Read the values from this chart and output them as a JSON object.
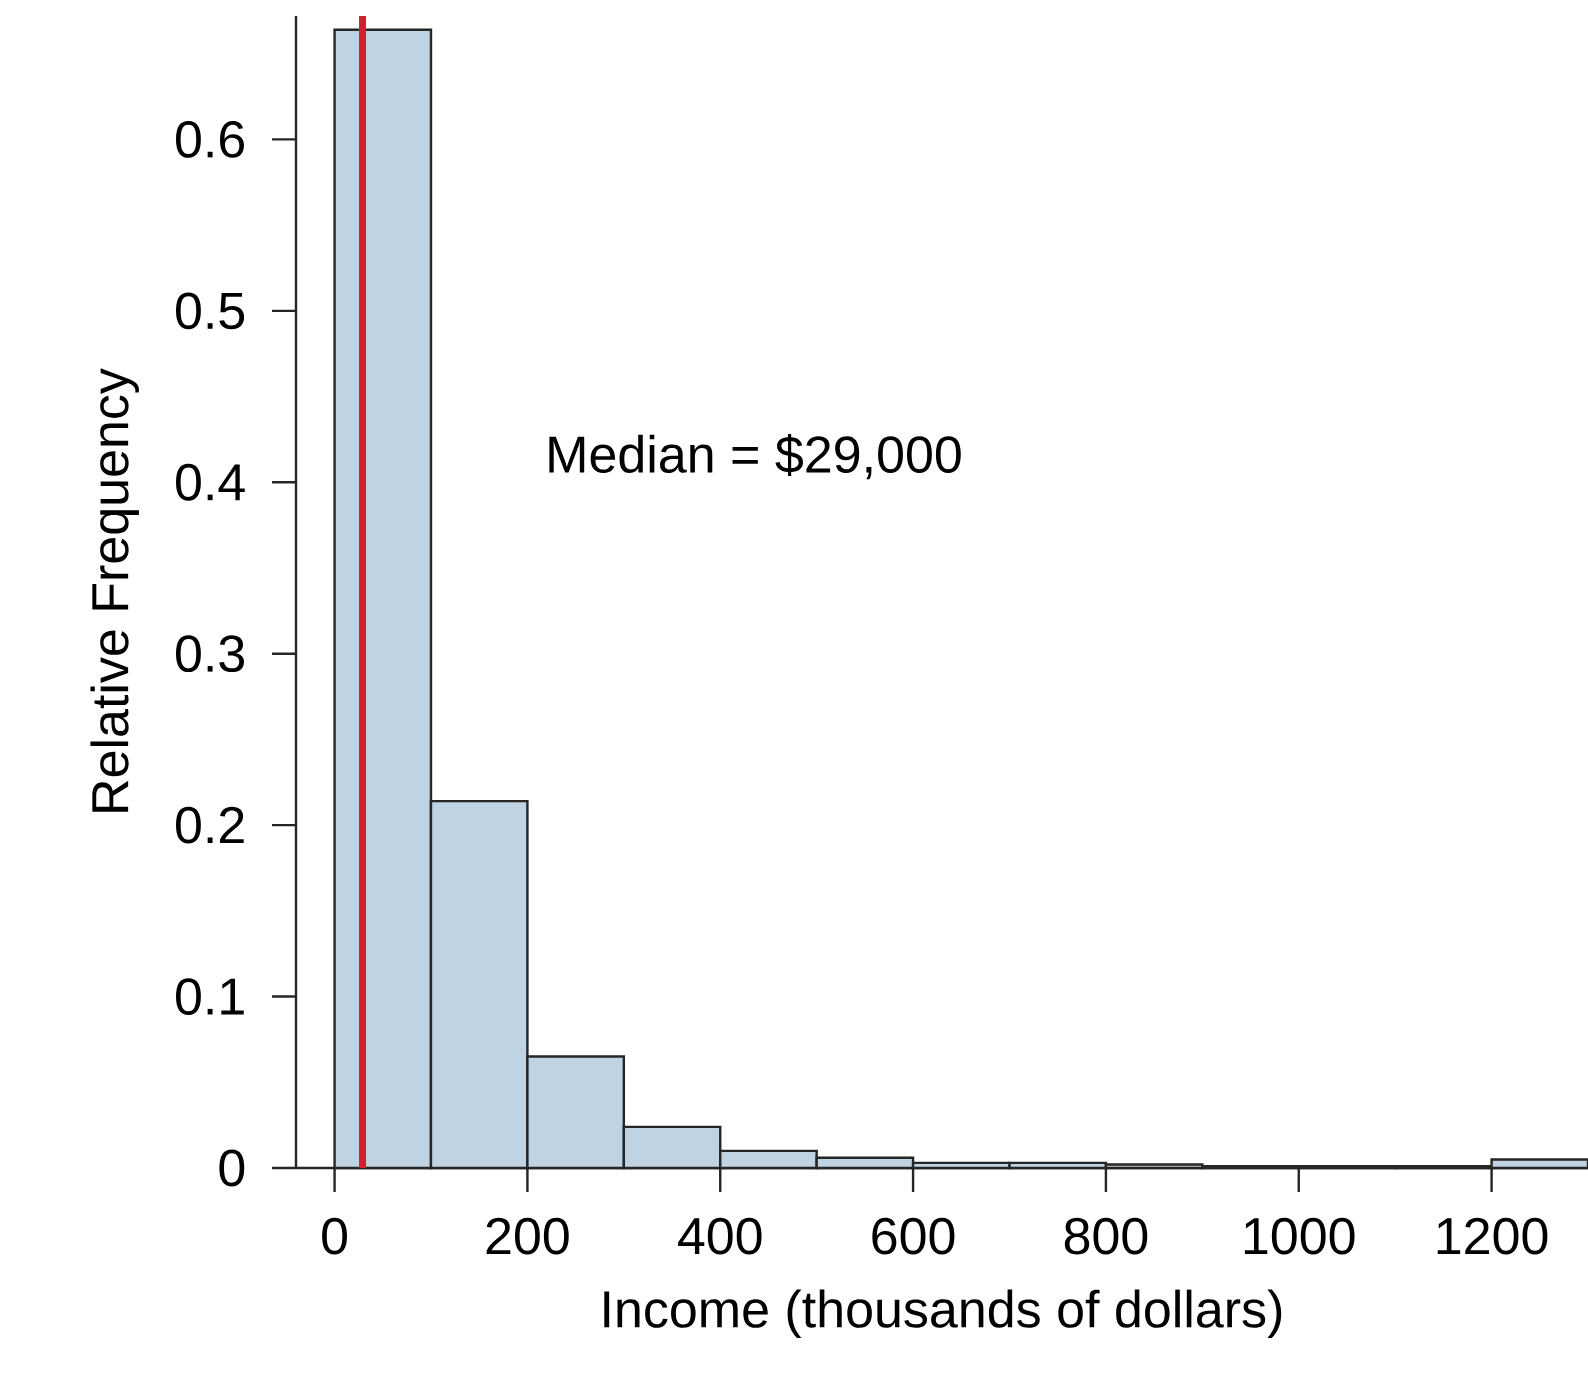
{
  "chart_data": {
    "type": "histogram",
    "xlabel": "Income (thousands of dollars)",
    "ylabel": "Relative Frequency",
    "bins": [
      0,
      100,
      200,
      300,
      400,
      500,
      600,
      700,
      800,
      900,
      1000,
      1100,
      1200,
      1300
    ],
    "values": [
      0.664,
      0.214,
      0.065,
      0.024,
      0.01,
      0.006,
      0.003,
      0.003,
      0.002,
      0.001,
      0.001,
      0.001,
      0.005
    ],
    "color": "#c0d3e3",
    "xlim": [
      -40,
      1300
    ],
    "ylim": [
      0,
      0.672
    ],
    "xticks": [
      0,
      200,
      400,
      600,
      800,
      1000,
      1200
    ],
    "yticks": [
      0,
      0.1,
      0.2,
      0.3,
      0.4,
      0.5,
      0.6
    ],
    "ref_lines": [
      {
        "axis": "x",
        "value": 29,
        "color": "#d22030"
      }
    ],
    "annotations": [
      "Median = $29,000"
    ]
  }
}
